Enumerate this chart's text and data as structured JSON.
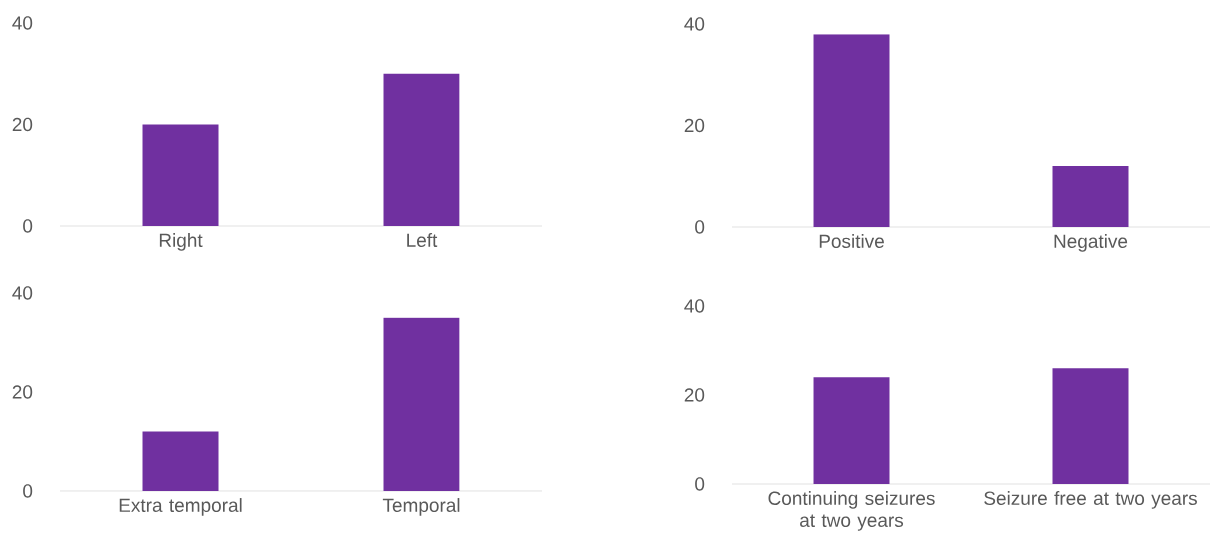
{
  "chart_data": [
    {
      "type": "bar",
      "categories": [
        "Right",
        "Left"
      ],
      "values": [
        20,
        30
      ],
      "color": "#7030a0",
      "ylim": [
        0,
        40
      ],
      "yticks": [
        0,
        20,
        40
      ]
    },
    {
      "type": "bar",
      "categories": [
        "Positive",
        "Negative"
      ],
      "values": [
        38,
        12
      ],
      "color": "#7030a0",
      "ylim": [
        0,
        40
      ],
      "yticks": [
        0,
        20,
        40
      ]
    },
    {
      "type": "bar",
      "categories": [
        "Extra temporal",
        "Temporal"
      ],
      "values": [
        12,
        35
      ],
      "color": "#7030a0",
      "ylim": [
        0,
        40
      ],
      "yticks": [
        0,
        20,
        40
      ]
    },
    {
      "type": "bar",
      "categories": [
        "Continuing seizures at two years",
        "Seizure free at two years"
      ],
      "values": [
        24,
        26
      ],
      "color": "#7030a0",
      "ylim": [
        0,
        40
      ],
      "yticks": [
        0,
        20,
        40
      ]
    }
  ]
}
